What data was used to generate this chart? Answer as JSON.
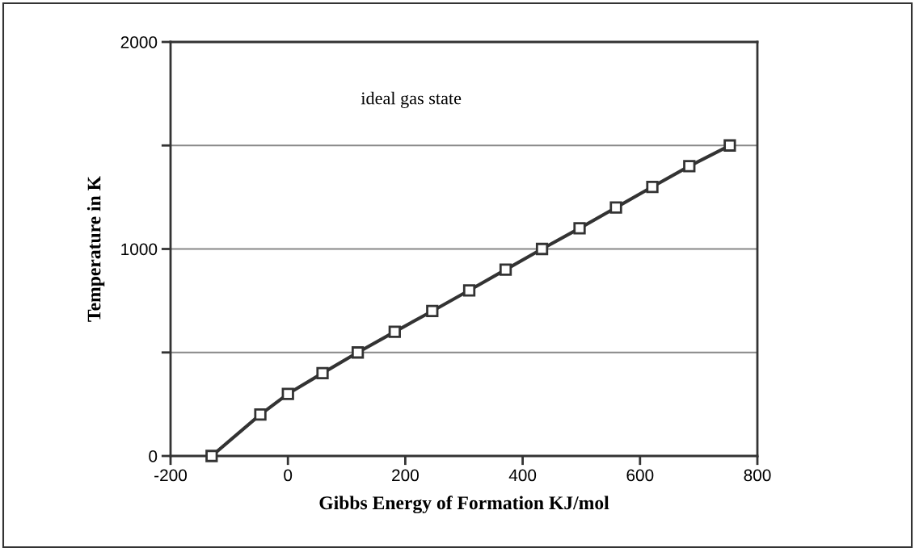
{
  "chart_data": {
    "type": "line",
    "xlabel": "Gibbs Energy of Formation KJ/mol",
    "ylabel": "Temperature in K",
    "x": [
      -130,
      -47,
      0,
      59,
      119,
      182,
      246,
      309,
      371,
      433,
      497,
      559,
      621,
      684,
      753
    ],
    "series": [
      {
        "color": "#333333",
        "values": [
          0,
          200,
          300,
          400,
          500,
          600,
          700,
          800,
          900,
          1000,
          1100,
          1200,
          1300,
          1400,
          1500
        ]
      }
    ],
    "xlim": [
      -200,
      800
    ],
    "xticks": [
      -200,
      0,
      200,
      400,
      600,
      800
    ],
    "ylim": [
      0,
      2000
    ],
    "yticks": [
      0,
      {
        "value": 500,
        "label": null
      },
      1000,
      {
        "value": 1500,
        "label": null
      },
      2000
    ],
    "grid": "y",
    "marker": "square",
    "line_style": "solid",
    "annotations": [
      "ideal gas state"
    ]
  }
}
